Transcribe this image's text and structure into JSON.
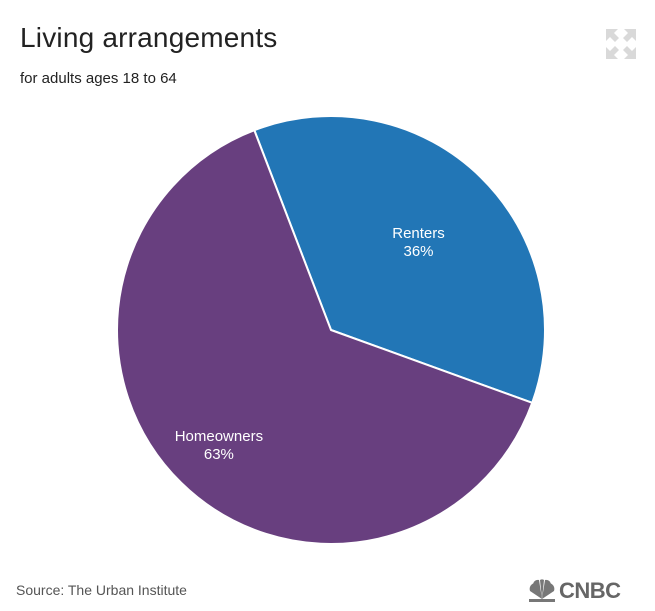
{
  "chart_data": {
    "type": "pie",
    "title": "Living arrangements",
    "subtitle": "for adults ages 18 to 64",
    "slices": [
      {
        "label": "Renters",
        "value": 36,
        "display": "36%",
        "color": "#2276b6"
      },
      {
        "label": "Homeowners",
        "value": 63,
        "display": "63%",
        "color": "#683f7f"
      }
    ],
    "start_angle_deg": -21,
    "direction": "clockwise"
  },
  "source": "Source: The Urban Institute",
  "logo": {
    "text": "CNBC"
  },
  "icons": {
    "expand": "expand-icon"
  }
}
